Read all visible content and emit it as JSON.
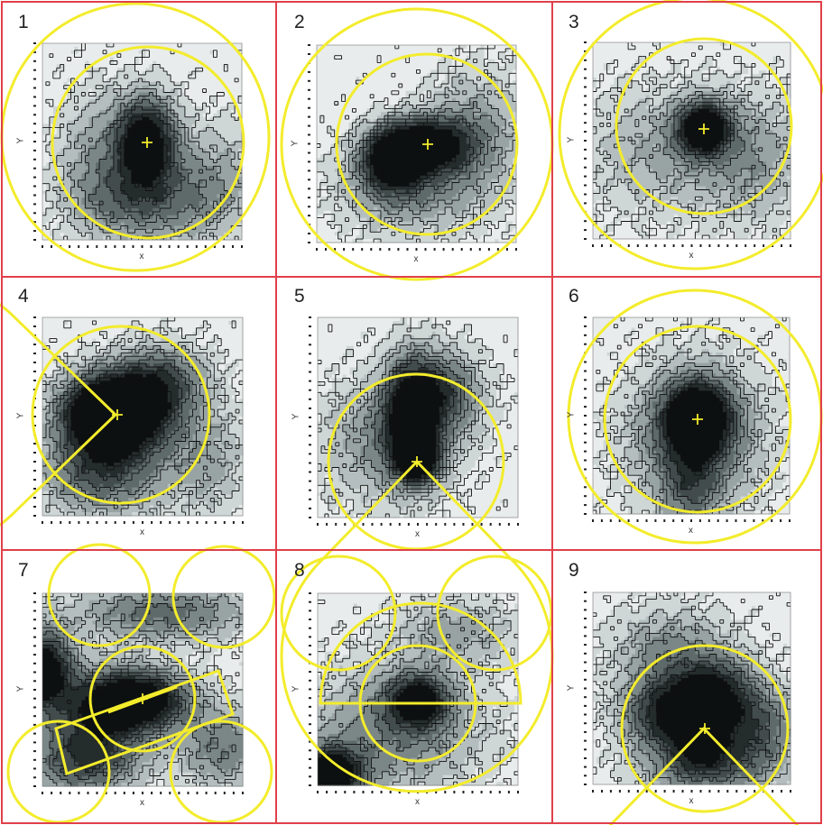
{
  "figure": {
    "grid_color": "#e0404a",
    "overlay_color": "#f3ec2c",
    "contour_line_color": "#111111",
    "fill_shades": [
      "#e8ecec",
      "#cfd6d6",
      "#b4bebe",
      "#98a3a3",
      "#7b8787",
      "#5e6a6a",
      "#424c4c",
      "#252c2c",
      "#0d1010"
    ]
  },
  "panels": [
    {
      "number": "1",
      "x_label": "x",
      "y_label": "Y",
      "overlay": "two circles"
    },
    {
      "number": "2",
      "x_label": "x",
      "y_label": "Y",
      "overlay": "two circles"
    },
    {
      "number": "3",
      "x_label": "x",
      "y_label": "Y",
      "overlay": "two circles"
    },
    {
      "number": "4",
      "x_label": "x",
      "y_label": "Y",
      "overlay": "circle and sector with wedge opening left"
    },
    {
      "number": "5",
      "x_label": "x",
      "y_label": "Y",
      "overlay": "circle and sector with wedge opening down"
    },
    {
      "number": "6",
      "x_label": "x",
      "y_label": "Y",
      "overlay": "two circles"
    },
    {
      "number": "7",
      "x_label": "x",
      "y_label": "Y",
      "overlay": "central circle, tilted strip and four corner circles"
    },
    {
      "number": "8",
      "x_label": "x",
      "y_label": "Y",
      "overlay": "half disc, central circle and two upper circles"
    },
    {
      "number": "9",
      "x_label": "x",
      "y_label": "Y",
      "overlay": "circle and sector with wedge opening down"
    }
  ]
}
